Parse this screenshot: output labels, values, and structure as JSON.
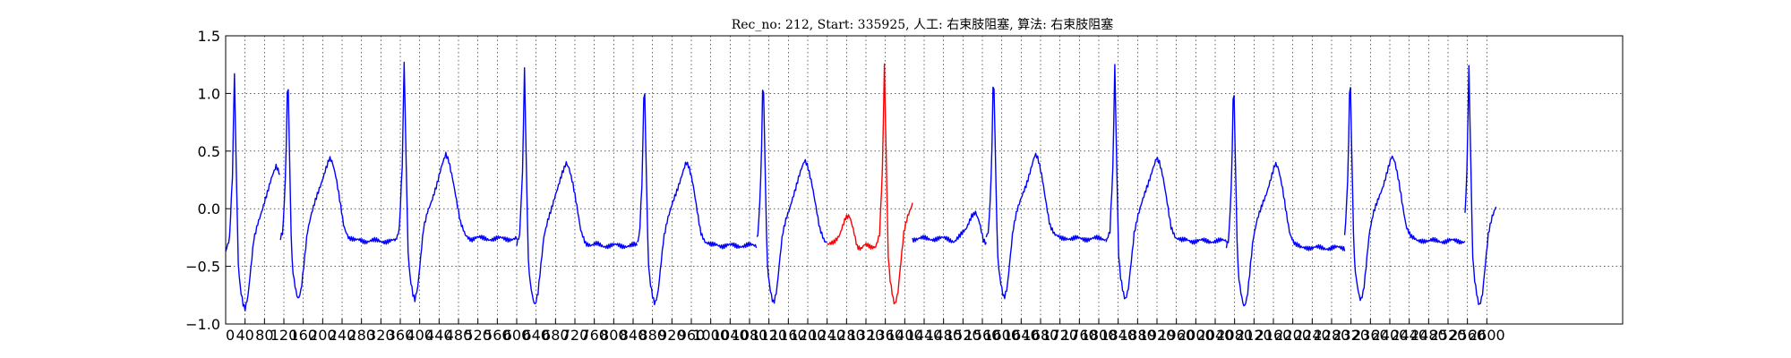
{
  "chart_data": {
    "type": "line",
    "title": "Rec_no: 212, Start: 335925, 人工: 右束肢阻塞, 算法: 右束肢阻塞",
    "xlabel": "",
    "ylabel": "",
    "xlim": [
      0,
      2880
    ],
    "ylim": [
      -1.0,
      1.5
    ],
    "grid": true,
    "x_ticks": [
      0,
      40,
      80,
      120,
      160,
      200,
      240,
      280,
      320,
      360,
      400,
      440,
      480,
      520,
      560,
      600,
      640,
      680,
      720,
      760,
      800,
      840,
      880,
      920,
      960,
      1000,
      1040,
      1080,
      1120,
      1160,
      1200,
      1240,
      1280,
      1320,
      1360,
      1400,
      1440,
      1480,
      1520,
      1560,
      1600,
      1640,
      1680,
      1720,
      1760,
      1800,
      1840,
      1880,
      1920,
      1960,
      2000,
      2040,
      2080,
      2120,
      2160,
      2200,
      2240,
      2280,
      2320,
      2360,
      2400,
      2440,
      2480,
      2520,
      2560,
      2600
    ],
    "x_tick_labels": [
      "0",
      "40",
      "80",
      "120",
      "160",
      "200",
      "240",
      "280",
      "320",
      "360",
      "400",
      "440",
      "480",
      "520",
      "560",
      "600",
      "640",
      "680",
      "720",
      "760",
      "800",
      "840",
      "880",
      "920",
      "960",
      "1000",
      "1040",
      "1080",
      "1120",
      "1160",
      "1200",
      "1240",
      "1280",
      "1320",
      "1360",
      "1400",
      "1440",
      "1480",
      "1520",
      "1560",
      "1600",
      "1640",
      "1680",
      "1720",
      "1760",
      "1800",
      "1840",
      "1880",
      "1920",
      "1960",
      "2000",
      "2040",
      "2080",
      "2120",
      "2160",
      "2200",
      "2240",
      "2280",
      "2320",
      "2360",
      "2400",
      "2440",
      "2480",
      "2520",
      "2560",
      "2600"
    ],
    "y_ticks": [
      -1.0,
      -0.5,
      0.0,
      0.5,
      1.0,
      1.5
    ],
    "y_tick_labels": [
      "−1.0",
      "−0.5",
      "0.0",
      "0.5",
      "1.0",
      "1.5"
    ],
    "beat_template": [
      [
        0,
        -0.28
      ],
      [
        12,
        -0.3
      ],
      [
        24,
        -0.26
      ],
      [
        36,
        -0.2
      ],
      [
        48,
        -0.07
      ],
      [
        56,
        -0.05
      ],
      [
        64,
        -0.15
      ],
      [
        72,
        -0.3
      ],
      [
        80,
        -0.33
      ],
      [
        88,
        -0.3
      ],
      [
        100,
        -0.31
      ],
      [
        110,
        -0.3
      ],
      [
        118,
        -0.2
      ],
      [
        124,
        0.35
      ],
      [
        128,
        1.25
      ],
      [
        132,
        0.4
      ],
      [
        136,
        -0.4
      ],
      [
        140,
        -0.6
      ],
      [
        146,
        -0.75
      ],
      [
        150,
        -0.8
      ],
      [
        156,
        -0.7
      ],
      [
        162,
        -0.45
      ],
      [
        168,
        -0.2
      ],
      [
        176,
        -0.05
      ],
      [
        184,
        0.05
      ],
      [
        196,
        0.2
      ],
      [
        206,
        0.35
      ],
      [
        214,
        0.45
      ],
      [
        220,
        0.4
      ],
      [
        228,
        0.25
      ],
      [
        236,
        0.05
      ],
      [
        244,
        -0.15
      ],
      [
        254,
        -0.25
      ],
      [
        266,
        -0.28
      ],
      [
        278,
        -0.27
      ],
      [
        290,
        -0.28
      ]
    ],
    "beats": [
      {
        "start": 0,
        "stop": 113,
        "dx": -110,
        "dy": -0.07,
        "scale": 1.0,
        "color": "#0000ff"
      },
      {
        "start": 113,
        "stop": 352,
        "dx": 0,
        "dy": 0.0,
        "scale": 1.0,
        "color": "#0000ff"
      },
      {
        "start": 352,
        "stop": 600,
        "dx": 240,
        "dy": 0.02,
        "scale": 1.0,
        "color": "#0000ff"
      },
      {
        "start": 600,
        "stop": 848,
        "dx": 488,
        "dy": -0.04,
        "scale": 1.0,
        "color": "#0000ff"
      },
      {
        "start": 848,
        "stop": 1095,
        "dx": 735,
        "dy": -0.04,
        "scale": 1.0,
        "color": "#0000ff"
      },
      {
        "start": 1095,
        "stop": 1240,
        "dx": 980,
        "dy": -0.02,
        "scale": 1.0,
        "color": "#0000ff"
      },
      {
        "start": 1240,
        "stop": 1416,
        "dx": 1230,
        "dy": -0.02,
        "scale": 1.0,
        "color": "#ff0000"
      },
      {
        "start": 1416,
        "stop": 1568,
        "dx": 1490,
        "dy": 0.02,
        "scale": 1.0,
        "color": "#0000ff"
      },
      {
        "start": 1568,
        "stop": 1815,
        "dx": 1455,
        "dy": 0.02,
        "scale": 1.0,
        "color": "#0000ff"
      },
      {
        "start": 1815,
        "stop": 2063,
        "dx": 1705,
        "dy": 0.0,
        "scale": 1.0,
        "color": "#0000ff"
      },
      {
        "start": 2063,
        "stop": 2307,
        "dx": 1950,
        "dy": -0.06,
        "scale": 1.0,
        "color": "#0000ff"
      },
      {
        "start": 2307,
        "stop": 2555,
        "dx": 2190,
        "dy": 0.0,
        "scale": 1.0,
        "color": "#0000ff"
      },
      {
        "start": 2555,
        "stop": 2620,
        "dx": 2435,
        "dy": -0.03,
        "scale": 1.0,
        "color": "#0000ff"
      }
    ],
    "series": [
      {
        "name": "",
        "color": "#0000ff"
      },
      {
        "name": "",
        "color": "#ff0000"
      }
    ]
  }
}
